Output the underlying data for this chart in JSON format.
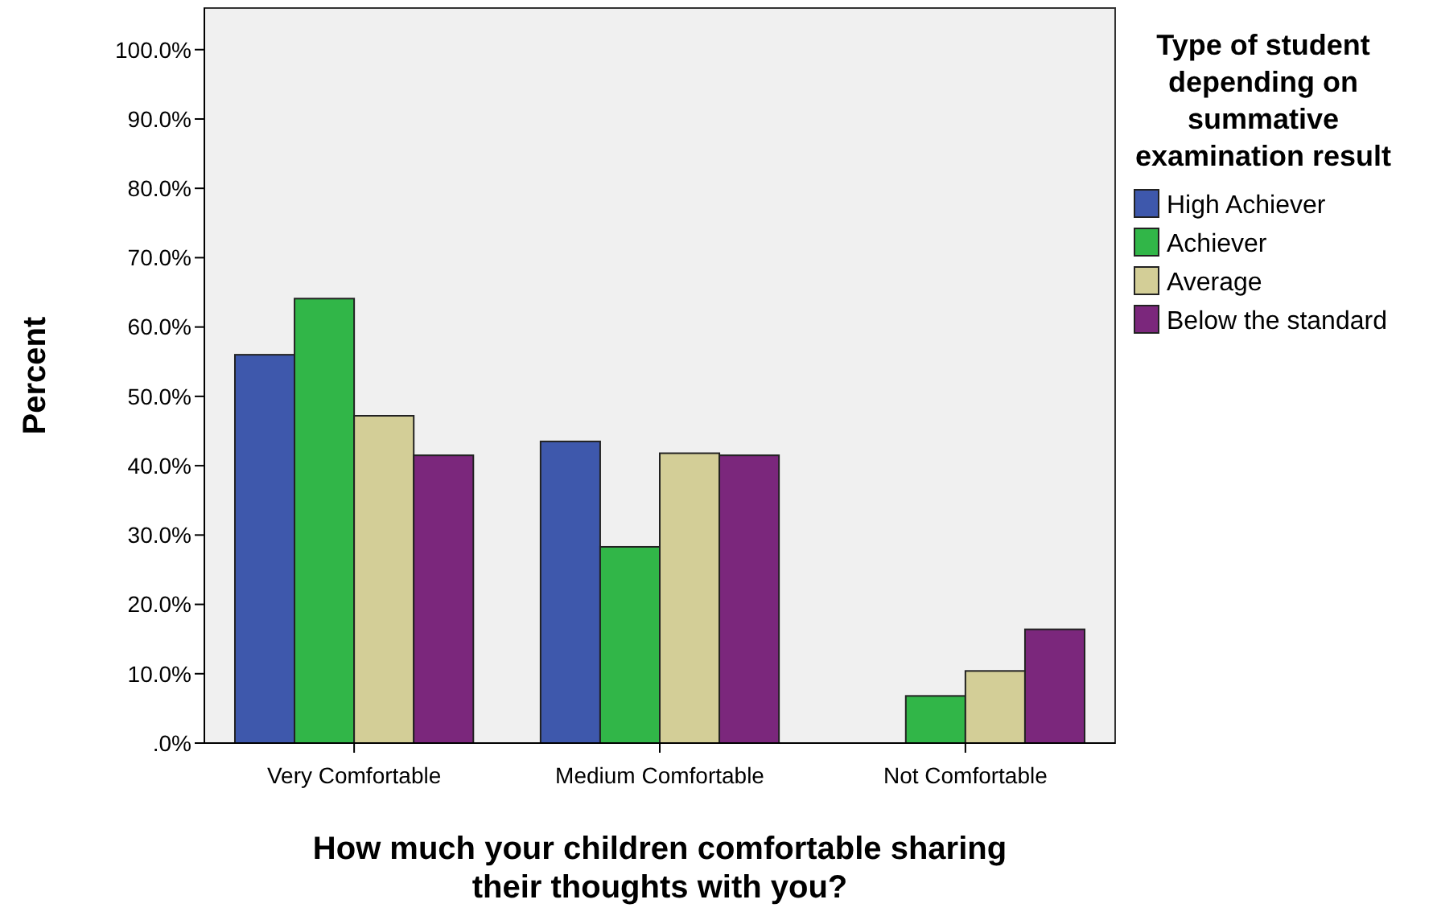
{
  "chart_data": {
    "type": "bar",
    "xlabel": "How much your children comfortable sharing their thoughts with you?",
    "ylabel": "Percent",
    "legend_title": "Type of student depending on summative examination result",
    "legend": "right",
    "grid": false,
    "categories": [
      "Very Comfortable",
      "Medium Comfortable",
      "Not Comfortable"
    ],
    "ylim": [
      0,
      106
    ],
    "yticks": [
      {
        "value": 0,
        "label": ".0%"
      },
      {
        "value": 10,
        "label": "10.0%"
      },
      {
        "value": 20,
        "label": "20.0%"
      },
      {
        "value": 30,
        "label": "30.0%"
      },
      {
        "value": 40,
        "label": "40.0%"
      },
      {
        "value": 50,
        "label": "50.0%"
      },
      {
        "value": 60,
        "label": "60.0%"
      },
      {
        "value": 70,
        "label": "70.0%"
      },
      {
        "value": 80,
        "label": "80.0%"
      },
      {
        "value": 90,
        "label": "90.0%"
      },
      {
        "value": 100,
        "label": "100.0%"
      }
    ],
    "series": [
      {
        "name": "High Achiever",
        "color": "#3e58ac",
        "values": [
          56.0,
          43.5,
          0
        ]
      },
      {
        "name": "Achiever",
        "color": "#31b648",
        "values": [
          64.1,
          28.3,
          6.8
        ]
      },
      {
        "name": "Average",
        "color": "#d3ce97",
        "values": [
          47.2,
          41.8,
          10.4
        ]
      },
      {
        "name": "Below the standard",
        "color": "#7b277c",
        "values": [
          41.5,
          41.5,
          16.4
        ]
      }
    ]
  }
}
